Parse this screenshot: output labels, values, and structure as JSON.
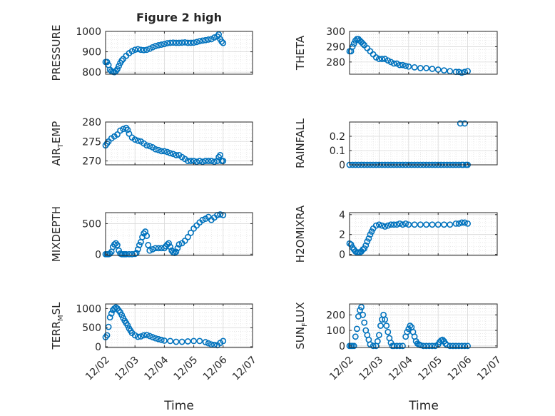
{
  "figure": {
    "marker_color": "#0072BD",
    "axes_color": "#262626",
    "grid_color": "#dcdcdc"
  },
  "chart_data": [
    {
      "type": "scatter",
      "title": "Figure 2 high",
      "ylabel": "PRESSURE",
      "ylabel_parts": [
        "PRESSURE"
      ],
      "xlim": [
        0,
        5
      ],
      "ylim": [
        790,
        1000
      ],
      "yticks": [
        800,
        900,
        1000
      ],
      "yticklabels": [
        "800",
        "900",
        "1000"
      ],
      "x": [
        0.0,
        0.05,
        0.1,
        0.15,
        0.2,
        0.25,
        0.3,
        0.35,
        0.4,
        0.45,
        0.5,
        0.55,
        0.6,
        0.7,
        0.8,
        0.9,
        1.0,
        1.1,
        1.2,
        1.3,
        1.4,
        1.5,
        1.6,
        1.7,
        1.8,
        1.9,
        2.0,
        2.1,
        2.2,
        2.3,
        2.4,
        2.5,
        2.6,
        2.7,
        2.8,
        2.9,
        3.0,
        3.1,
        3.2,
        3.3,
        3.4,
        3.5,
        3.6,
        3.7,
        3.8,
        3.85,
        3.9,
        3.95,
        4.0
      ],
      "y": [
        850,
        850,
        835,
        812,
        805,
        802,
        800,
        805,
        815,
        830,
        845,
        857,
        865,
        880,
        893,
        903,
        910,
        913,
        910,
        908,
        910,
        915,
        922,
        928,
        932,
        935,
        938,
        942,
        944,
        945,
        944,
        944,
        945,
        946,
        944,
        944,
        945,
        948,
        952,
        955,
        957,
        960,
        962,
        970,
        975,
        985,
        962,
        950,
        943
      ]
    },
    {
      "type": "scatter",
      "ylabel": "THETA",
      "ylabel_parts": [
        "THETA"
      ],
      "xlim": [
        0,
        5
      ],
      "ylim": [
        272,
        300
      ],
      "yticks": [
        280,
        290,
        300
      ],
      "yticklabels": [
        "280",
        "290",
        "300"
      ],
      "x": [
        0.0,
        0.05,
        0.1,
        0.15,
        0.2,
        0.25,
        0.3,
        0.35,
        0.4,
        0.45,
        0.5,
        0.6,
        0.7,
        0.8,
        0.9,
        1.0,
        1.1,
        1.2,
        1.3,
        1.4,
        1.5,
        1.6,
        1.7,
        1.8,
        1.9,
        2.0,
        2.2,
        2.4,
        2.6,
        2.8,
        3.0,
        3.2,
        3.4,
        3.6,
        3.7,
        3.8,
        3.9,
        4.0
      ],
      "y": [
        287,
        287,
        290,
        292,
        294,
        295,
        295,
        294,
        293,
        292,
        291,
        289,
        287,
        285,
        283,
        282,
        282,
        282,
        281,
        280,
        279,
        279,
        278,
        278,
        277.5,
        277,
        276.5,
        276,
        276,
        275.5,
        275,
        274.5,
        274,
        273.5,
        273.5,
        273,
        273.5,
        274
      ]
    },
    {
      "type": "scatter",
      "ylabel": "AIR_TEMP",
      "ylabel_parts": [
        "AIR",
        "T",
        "EMP"
      ],
      "xlim": [
        0,
        5
      ],
      "ylim": [
        269,
        280
      ],
      "yticks": [
        270,
        275,
        280
      ],
      "yticklabels": [
        "270",
        "275",
        "280"
      ],
      "x": [
        0.0,
        0.05,
        0.1,
        0.2,
        0.3,
        0.4,
        0.5,
        0.6,
        0.7,
        0.75,
        0.8,
        0.9,
        1.0,
        1.1,
        1.2,
        1.3,
        1.4,
        1.5,
        1.6,
        1.7,
        1.8,
        1.9,
        2.0,
        2.1,
        2.2,
        2.3,
        2.4,
        2.5,
        2.6,
        2.7,
        2.8,
        2.9,
        3.0,
        3.1,
        3.2,
        3.3,
        3.4,
        3.5,
        3.6,
        3.7,
        3.8,
        3.85,
        3.9,
        3.95,
        4.0
      ],
      "y": [
        274,
        274.5,
        275,
        275.8,
        276.3,
        276.8,
        277.8,
        278.2,
        278.5,
        278,
        277,
        276,
        275.5,
        275.2,
        275,
        274.5,
        274,
        273.8,
        273.5,
        273,
        272.8,
        272.5,
        272.5,
        272.3,
        272,
        271.8,
        271.5,
        271.5,
        271,
        270.5,
        270,
        270,
        270,
        269.8,
        270,
        269.8,
        270,
        270,
        270,
        269.8,
        270,
        271,
        271.5,
        270,
        270
      ]
    },
    {
      "type": "scatter",
      "ylabel": "RAINFALL",
      "ylabel_parts": [
        "RAINFALL"
      ],
      "xlim": [
        0,
        5
      ],
      "ylim": [
        0,
        0.3
      ],
      "yticks": [
        0,
        0.1,
        0.2
      ],
      "yticklabels": [
        "0",
        "0.1",
        "0.2"
      ],
      "x": [
        0.0,
        0.1,
        0.2,
        0.3,
        0.4,
        0.5,
        0.6,
        0.7,
        0.8,
        0.9,
        1.0,
        1.1,
        1.2,
        1.3,
        1.4,
        1.5,
        1.6,
        1.7,
        1.8,
        1.9,
        2.0,
        2.1,
        2.2,
        2.3,
        2.4,
        2.5,
        2.6,
        2.7,
        2.8,
        2.9,
        3.0,
        3.1,
        3.2,
        3.3,
        3.4,
        3.5,
        3.6,
        3.7,
        3.75,
        3.8,
        3.85,
        3.9,
        3.95,
        4.0
      ],
      "y": [
        0,
        0,
        0,
        0,
        0,
        0,
        0,
        0,
        0,
        0,
        0,
        0,
        0,
        0,
        0,
        0,
        0,
        0,
        0,
        0,
        0,
        0,
        0,
        0,
        0,
        0,
        0,
        0,
        0,
        0,
        0,
        0,
        0,
        0,
        0,
        0,
        0,
        0,
        0.29,
        0,
        0,
        0.29,
        0,
        0
      ]
    },
    {
      "type": "scatter",
      "ylabel": "MIXDEPTH",
      "ylabel_parts": [
        "MIXDEPTH"
      ],
      "xlim": [
        0,
        5
      ],
      "ylim": [
        -20,
        680
      ],
      "yticks": [
        0,
        500
      ],
      "yticklabels": [
        "0",
        "500"
      ],
      "x": [
        0.0,
        0.05,
        0.1,
        0.15,
        0.2,
        0.25,
        0.3,
        0.35,
        0.4,
        0.45,
        0.5,
        0.55,
        0.6,
        0.65,
        0.7,
        0.8,
        0.9,
        1.0,
        1.05,
        1.1,
        1.15,
        1.2,
        1.25,
        1.3,
        1.35,
        1.4,
        1.45,
        1.5,
        1.6,
        1.7,
        1.8,
        1.9,
        2.0,
        2.05,
        2.1,
        2.15,
        2.2,
        2.25,
        2.3,
        2.35,
        2.4,
        2.45,
        2.5,
        2.6,
        2.7,
        2.8,
        2.9,
        3.0,
        3.1,
        3.2,
        3.3,
        3.4,
        3.5,
        3.6,
        3.7,
        3.8,
        3.9,
        4.0
      ],
      "y": [
        0,
        0,
        0,
        10,
        40,
        120,
        160,
        180,
        150,
        60,
        10,
        0,
        0,
        0,
        0,
        0,
        0,
        5,
        20,
        80,
        150,
        200,
        280,
        340,
        370,
        300,
        150,
        60,
        80,
        100,
        100,
        100,
        100,
        130,
        160,
        180,
        120,
        60,
        30,
        20,
        40,
        100,
        160,
        180,
        220,
        280,
        350,
        420,
        470,
        520,
        560,
        580,
        610,
        560,
        600,
        640,
        650,
        640
      ]
    },
    {
      "type": "scatter",
      "ylabel": "H2OMIXRA",
      "ylabel_parts": [
        "H2OMIXRA"
      ],
      "xlim": [
        0,
        5
      ],
      "ylim": [
        -0.1,
        4.2
      ],
      "yticks": [
        0,
        2,
        4
      ],
      "yticklabels": [
        "0",
        "2",
        "4"
      ],
      "x": [
        0.0,
        0.05,
        0.1,
        0.15,
        0.2,
        0.25,
        0.3,
        0.35,
        0.4,
        0.45,
        0.5,
        0.55,
        0.6,
        0.65,
        0.7,
        0.75,
        0.8,
        0.9,
        1.0,
        1.1,
        1.2,
        1.3,
        1.4,
        1.5,
        1.6,
        1.7,
        1.8,
        1.9,
        2.0,
        2.2,
        2.4,
        2.6,
        2.8,
        3.0,
        3.2,
        3.4,
        3.6,
        3.7,
        3.8,
        3.9,
        4.0
      ],
      "y": [
        1.1,
        1,
        0.7,
        0.5,
        0.3,
        0.2,
        0.2,
        0.2,
        0.3,
        0.5,
        0.6,
        0.9,
        1.3,
        1.6,
        2.0,
        2.3,
        2.6,
        2.9,
        3.0,
        2.9,
        2.8,
        2.9,
        3.0,
        3.0,
        3.0,
        3.1,
        3.0,
        3.1,
        3.0,
        3.0,
        3.0,
        3.0,
        3.0,
        3.0,
        3.0,
        3.0,
        3.1,
        3.1,
        3.2,
        3.2,
        3.1
      ]
    },
    {
      "type": "scatter",
      "ylabel": "TERR_MSL",
      "ylabel_parts": [
        "TERR",
        "M",
        "SL"
      ],
      "xlim": [
        0,
        5
      ],
      "ylim": [
        -20,
        1120
      ],
      "yticks": [
        0,
        500,
        1000
      ],
      "yticklabels": [
        "0",
        "500",
        "1000"
      ],
      "x": [
        0.0,
        0.05,
        0.1,
        0.15,
        0.2,
        0.25,
        0.3,
        0.35,
        0.4,
        0.45,
        0.5,
        0.55,
        0.6,
        0.65,
        0.7,
        0.75,
        0.8,
        0.85,
        0.9,
        1.0,
        1.1,
        1.2,
        1.3,
        1.4,
        1.5,
        1.6,
        1.7,
        1.8,
        1.9,
        2.0,
        2.2,
        2.4,
        2.6,
        2.8,
        3.0,
        3.2,
        3.4,
        3.5,
        3.6,
        3.7,
        3.8,
        3.9,
        4.0
      ],
      "y": [
        250,
        300,
        520,
        770,
        870,
        960,
        1000,
        1030,
        1000,
        950,
        900,
        830,
        750,
        680,
        620,
        560,
        480,
        420,
        360,
        300,
        260,
        270,
        300,
        310,
        280,
        250,
        220,
        200,
        180,
        160,
        150,
        130,
        130,
        140,
        150,
        150,
        120,
        90,
        60,
        50,
        40,
        100,
        150
      ]
    },
    {
      "type": "scatter",
      "ylabel": "SUN_FLUX",
      "ylabel_parts": [
        "SUN",
        "F",
        "LUX"
      ],
      "xlim": [
        0,
        5
      ],
      "ylim": [
        -10,
        270
      ],
      "yticks": [
        0,
        100,
        200
      ],
      "yticklabels": [
        "0",
        "100",
        "200"
      ],
      "x": [
        0.0,
        0.05,
        0.1,
        0.15,
        0.2,
        0.25,
        0.3,
        0.35,
        0.4,
        0.45,
        0.5,
        0.55,
        0.6,
        0.65,
        0.7,
        0.8,
        0.9,
        0.95,
        1.0,
        1.05,
        1.1,
        1.15,
        1.2,
        1.25,
        1.3,
        1.35,
        1.4,
        1.45,
        1.5,
        1.6,
        1.7,
        1.8,
        1.9,
        1.95,
        2.0,
        2.05,
        2.1,
        2.15,
        2.2,
        2.25,
        2.3,
        2.35,
        2.4,
        2.5,
        2.6,
        2.7,
        2.8,
        2.9,
        3.0,
        3.05,
        3.1,
        3.15,
        3.2,
        3.25,
        3.3,
        3.4,
        3.5,
        3.6,
        3.7,
        3.8,
        3.9,
        4.0
      ],
      "y": [
        0,
        0,
        0,
        0,
        60,
        110,
        190,
        230,
        250,
        200,
        150,
        100,
        70,
        40,
        10,
        0,
        0,
        30,
        70,
        130,
        170,
        200,
        170,
        130,
        90,
        50,
        20,
        0,
        0,
        0,
        0,
        0,
        60,
        90,
        110,
        130,
        120,
        90,
        60,
        30,
        15,
        10,
        5,
        0,
        0,
        0,
        0,
        0,
        10,
        25,
        35,
        40,
        30,
        15,
        5,
        0,
        0,
        0,
        0,
        0,
        0,
        0
      ]
    }
  ],
  "x_axis": {
    "ticks": [
      0,
      1,
      2,
      3,
      4,
      5
    ],
    "ticklabels": [
      "12/02",
      "12/03",
      "12/04",
      "12/05",
      "12/06",
      "12/07"
    ],
    "xlabel": "Time"
  }
}
